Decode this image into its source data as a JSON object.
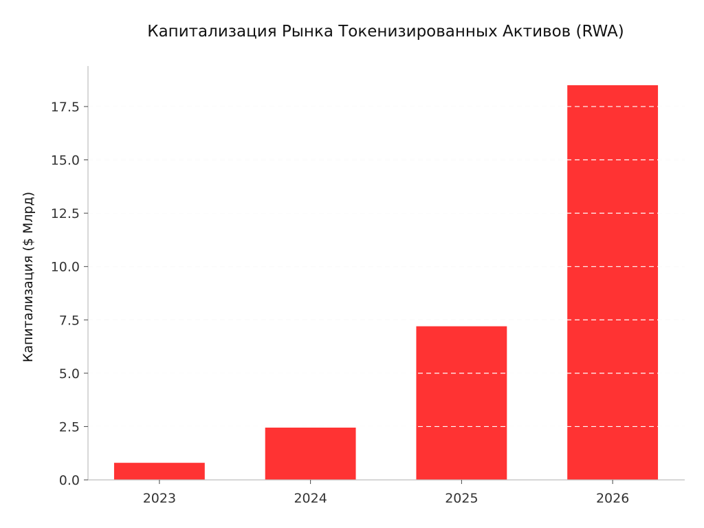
{
  "chart_data": {
    "type": "bar",
    "title": "Капитализация Рынка Токенизированных Активов (RWA)",
    "xlabel": "",
    "ylabel": "Капитализация ($ Млрд)",
    "categories": [
      "2023",
      "2024",
      "2025",
      "2026"
    ],
    "series": [
      {
        "values": [
          0.8,
          2.45,
          7.2,
          18.5
        ]
      }
    ],
    "ylim": [
      0,
      19.4
    ],
    "yticks": [
      0.0,
      2.5,
      5.0,
      7.5,
      10.0,
      12.5,
      15.0,
      17.5
    ],
    "ytick_labels": [
      "0.0",
      "2.5",
      "5.0",
      "7.5",
      "10.0",
      "12.5",
      "15.0",
      "17.5"
    ],
    "grid": true,
    "grid_axis": "y",
    "grid_style": "dashed",
    "bar_color": "#ff3333",
    "legend": "none"
  }
}
